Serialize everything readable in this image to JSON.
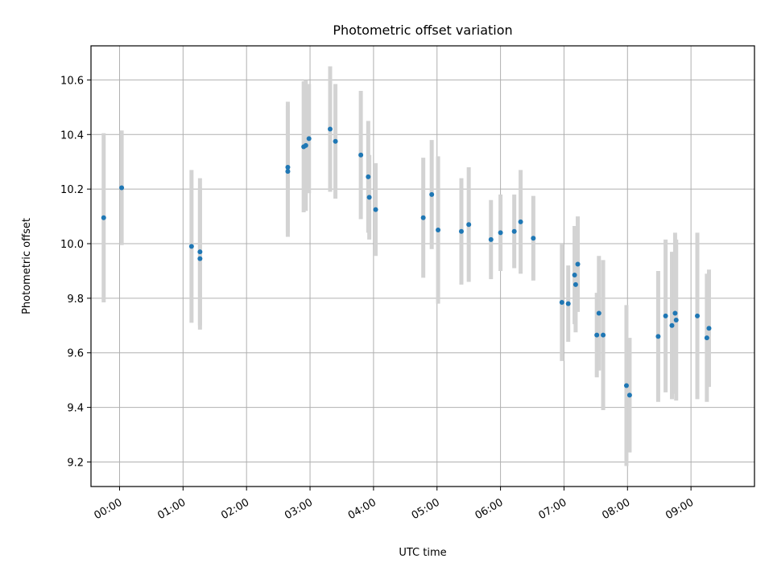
{
  "chart_data": {
    "type": "scatter",
    "title": "Photometric offset variation",
    "xlabel": "UTC time",
    "ylabel": "Photometric offset",
    "x_unit": "time (HH:MM, UTC)",
    "xlim": [
      "23:33",
      "10:00"
    ],
    "ylim": [
      9.11,
      10.725
    ],
    "grid": true,
    "x_ticks": [
      "00:00",
      "01:00",
      "02:00",
      "03:00",
      "04:00",
      "05:00",
      "06:00",
      "07:00",
      "08:00",
      "09:00"
    ],
    "y_ticks": [
      "9.2",
      "9.4",
      "9.6",
      "9.8",
      "10.0",
      "10.2",
      "10.4",
      "10.6"
    ],
    "colors": {
      "points": "#1f77b4",
      "errorbars": "#d3d3d3",
      "grid": "#b0b0b0"
    },
    "series": [
      {
        "x": [
          "23:45",
          "00:02",
          "01:08",
          "01:16",
          "01:16",
          "02:39",
          "02:39",
          "02:54",
          "02:56",
          "02:59",
          "03:19",
          "03:24",
          "03:48",
          "03:55",
          "03:56",
          "04:02",
          "04:47",
          "04:55",
          "05:01",
          "05:23",
          "05:30",
          "05:51",
          "06:00",
          "06:13",
          "06:19",
          "06:31",
          "06:58",
          "07:04",
          "07:10",
          "07:11",
          "07:13",
          "07:31",
          "07:33",
          "07:37",
          "07:59",
          "08:02",
          "08:29",
          "08:36",
          "08:42",
          "08:45",
          "08:46",
          "09:06",
          "09:15",
          "09:17"
        ],
        "y": [
          10.095,
          10.205,
          9.99,
          9.97,
          9.945,
          10.28,
          10.265,
          10.355,
          10.36,
          10.385,
          10.42,
          10.375,
          10.325,
          10.245,
          10.17,
          10.125,
          10.095,
          10.18,
          10.05,
          10.045,
          10.07,
          10.015,
          10.04,
          10.045,
          10.08,
          10.02,
          9.785,
          9.78,
          9.885,
          9.85,
          9.925,
          9.665,
          9.745,
          9.665,
          9.48,
          9.445,
          9.66,
          9.735,
          9.7,
          9.745,
          9.72,
          9.735,
          9.655,
          9.69
        ],
        "yerr": [
          0.31,
          0.21,
          0.28,
          0.27,
          0.26,
          0.24,
          0.24,
          0.24,
          0.24,
          0.2,
          0.23,
          0.21,
          0.235,
          0.205,
          0.155,
          0.17,
          0.22,
          0.2,
          0.27,
          0.195,
          0.21,
          0.145,
          0.14,
          0.135,
          0.19,
          0.155,
          0.215,
          0.14,
          0.18,
          0.175,
          0.175,
          0.155,
          0.21,
          0.275,
          0.295,
          0.21,
          0.24,
          0.28,
          0.27,
          0.295,
          0.295,
          0.305,
          0.235,
          0.215
        ]
      }
    ]
  }
}
